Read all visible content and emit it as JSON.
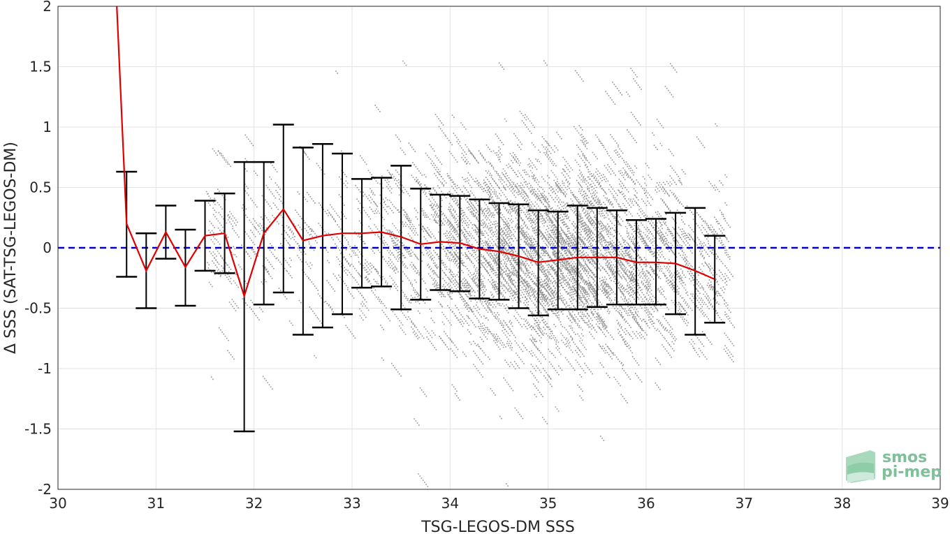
{
  "chart_data": {
    "type": "scatter",
    "xlabel": "TSG-LEGOS-DM SSS",
    "ylabel": "Δ SSS (SAT-TSG-LEGOS-DM)",
    "xlim": [
      30,
      39
    ],
    "ylim": [
      -2,
      2
    ],
    "x_ticks": [
      30,
      31,
      32,
      33,
      34,
      35,
      36,
      37,
      38,
      39
    ],
    "y_ticks": [
      -2,
      -1.5,
      -1,
      -0.5,
      0,
      0.5,
      1,
      1.5,
      2
    ],
    "x_tick_labels": [
      "30",
      "31",
      "32",
      "33",
      "34",
      "35",
      "36",
      "37",
      "38",
      "39"
    ],
    "y_tick_labels": [
      "-2",
      "-1.5",
      "-1",
      "-0.5",
      "0",
      "0.5",
      "1",
      "1.5",
      "2"
    ],
    "grid": true,
    "scatter_color": "#808080",
    "mean_line_color": "#e00000",
    "errorbar_color": "#000000",
    "zero_line_color": "#0000cc",
    "zero_line": 0,
    "mean_line_start": {
      "x": 30.6,
      "y": 2.0
    },
    "binned_stats": [
      {
        "x": 30.7,
        "mean": 0.2,
        "lower": -0.24,
        "upper": 0.63
      },
      {
        "x": 30.9,
        "mean": -0.19,
        "lower": -0.5,
        "upper": 0.12
      },
      {
        "x": 31.1,
        "mean": 0.13,
        "lower": -0.09,
        "upper": 0.35
      },
      {
        "x": 31.3,
        "mean": -0.16,
        "lower": -0.48,
        "upper": 0.15
      },
      {
        "x": 31.5,
        "mean": 0.1,
        "lower": -0.19,
        "upper": 0.39
      },
      {
        "x": 31.7,
        "mean": 0.12,
        "lower": -0.21,
        "upper": 0.45
      },
      {
        "x": 31.9,
        "mean": -0.4,
        "lower": -1.52,
        "upper": 0.71
      },
      {
        "x": 32.1,
        "mean": 0.12,
        "lower": -0.47,
        "upper": 0.71
      },
      {
        "x": 32.3,
        "mean": 0.32,
        "lower": -0.37,
        "upper": 1.02
      },
      {
        "x": 32.5,
        "mean": 0.06,
        "lower": -0.72,
        "upper": 0.83
      },
      {
        "x": 32.7,
        "mean": 0.1,
        "lower": -0.66,
        "upper": 0.86
      },
      {
        "x": 32.9,
        "mean": 0.12,
        "lower": -0.55,
        "upper": 0.78
      },
      {
        "x": 33.1,
        "mean": 0.12,
        "lower": -0.33,
        "upper": 0.57
      },
      {
        "x": 33.3,
        "mean": 0.13,
        "lower": -0.32,
        "upper": 0.58
      },
      {
        "x": 33.5,
        "mean": 0.09,
        "lower": -0.51,
        "upper": 0.68
      },
      {
        "x": 33.7,
        "mean": 0.03,
        "lower": -0.43,
        "upper": 0.49
      },
      {
        "x": 33.9,
        "mean": 0.05,
        "lower": -0.35,
        "upper": 0.44
      },
      {
        "x": 34.1,
        "mean": 0.04,
        "lower": -0.36,
        "upper": 0.43
      },
      {
        "x": 34.3,
        "mean": -0.01,
        "lower": -0.42,
        "upper": 0.4
      },
      {
        "x": 34.5,
        "mean": -0.03,
        "lower": -0.43,
        "upper": 0.37
      },
      {
        "x": 34.7,
        "mean": -0.07,
        "lower": -0.5,
        "upper": 0.36
      },
      {
        "x": 34.9,
        "mean": -0.12,
        "lower": -0.56,
        "upper": 0.31
      },
      {
        "x": 35.1,
        "mean": -0.1,
        "lower": -0.51,
        "upper": 0.3
      },
      {
        "x": 35.3,
        "mean": -0.08,
        "lower": -0.51,
        "upper": 0.35
      },
      {
        "x": 35.5,
        "mean": -0.08,
        "lower": -0.49,
        "upper": 0.33
      },
      {
        "x": 35.7,
        "mean": -0.08,
        "lower": -0.47,
        "upper": 0.31
      },
      {
        "x": 35.9,
        "mean": -0.12,
        "lower": -0.47,
        "upper": 0.23
      },
      {
        "x": 36.1,
        "mean": -0.12,
        "lower": -0.47,
        "upper": 0.24
      },
      {
        "x": 36.3,
        "mean": -0.13,
        "lower": -0.55,
        "upper": 0.29
      },
      {
        "x": 36.5,
        "mean": -0.19,
        "lower": -0.72,
        "upper": 0.33
      },
      {
        "x": 36.7,
        "mean": -0.26,
        "lower": -0.62,
        "upper": 0.1
      }
    ],
    "scatter_spread_note": "Dense cloud of grey points concentrated between x≈33.5 and x≈36.5, y spread ≈ ±1.5, diagonal streaks with negative slope"
  },
  "logo": {
    "line1": "smos",
    "line2": "pi-mep",
    "color": "#7fbf9a"
  }
}
